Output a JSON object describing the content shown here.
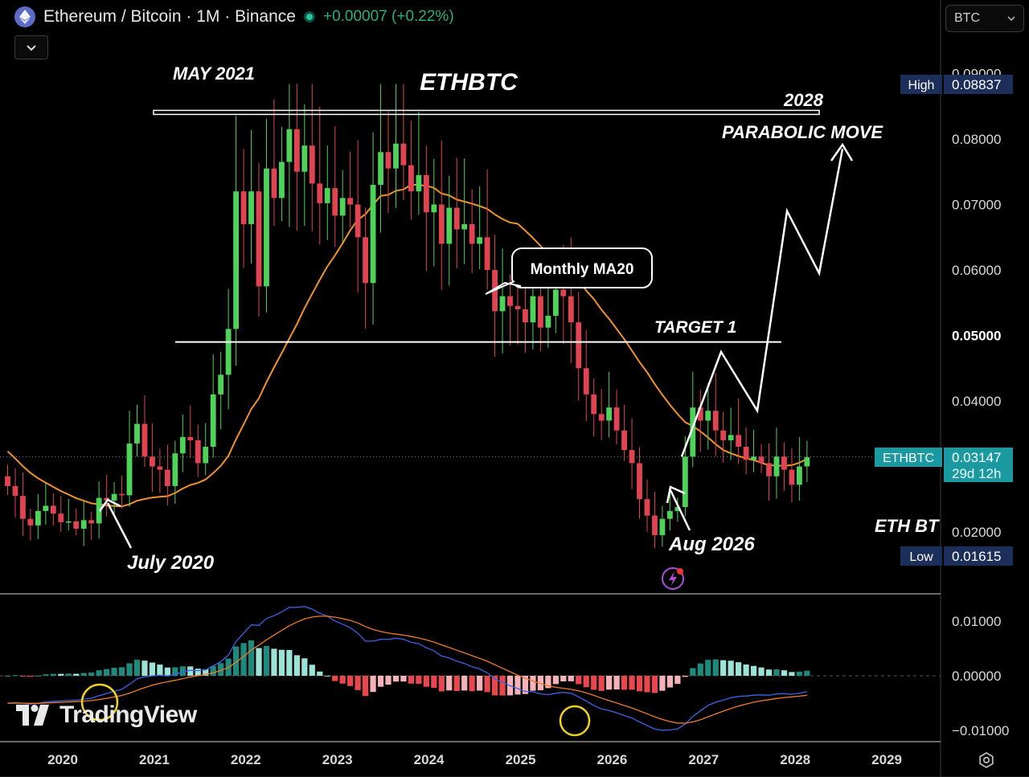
{
  "header": {
    "title": "Ethereum / Bitcoin · 1M · Binance",
    "change": "+0.00007 (+0.22%)"
  },
  "currency_selector": {
    "value": "BTC"
  },
  "watermark": "TradingView",
  "colors": {
    "up": "#4fd25a",
    "down": "#e04452",
    "ma": "#f0922a",
    "macd": "#3d63e6",
    "signal": "#f07a2a",
    "hist_pos_dark": "#1e8a7e",
    "hist_pos_light": "#9be3d6",
    "hist_neg_dark": "#e8474e",
    "hist_neg_light": "#f5b3b8",
    "badge_blue": "#1c2e5a",
    "badge_teal": "#1a9aa0"
  },
  "chart_data": {
    "type": "candlestick",
    "symbol": "ETHBTC",
    "timeframe": "1M",
    "exchange": "Binance",
    "price_axis_ticks": [
      0.09,
      0.08,
      0.07,
      0.06,
      0.05,
      0.04,
      0.02
    ],
    "price_axis_labels": [
      "0.09000",
      "0.08000",
      "0.07000",
      "0.06000",
      "0.05000",
      "0.04000",
      "0.02000"
    ],
    "ylim": [
      0.0135,
      0.0905
    ],
    "x_ticks": [
      "2020",
      "2021",
      "2022",
      "2023",
      "2024",
      "2025",
      "2026",
      "2027",
      "2028",
      "2029"
    ],
    "high": {
      "label": "High",
      "value": "0.08837"
    },
    "low": {
      "label": "Low",
      "value": "0.01615"
    },
    "last": {
      "symbol": "ETHBTC",
      "value": "0.03147",
      "countdown": "29d 12h",
      "price": 0.03147
    },
    "candles_close": [
      0.027,
      0.0255,
      0.022,
      0.021,
      0.0232,
      0.024,
      0.0228,
      0.0215,
      0.0216,
      0.0205,
      0.0218,
      0.0213,
      0.0252,
      0.0248,
      0.0258,
      0.0256,
      0.0335,
      0.0365,
      0.0315,
      0.03,
      0.0295,
      0.027,
      0.032,
      0.0345,
      0.034,
      0.0305,
      0.033,
      0.041,
      0.044,
      0.051,
      0.072,
      0.067,
      0.072,
      0.0575,
      0.0755,
      0.071,
      0.0765,
      0.0815,
      0.075,
      0.079,
      0.0732,
      0.0702,
      0.0725,
      0.0683,
      0.071,
      0.07,
      0.065,
      0.058,
      0.073,
      0.078,
      0.0755,
      0.0793,
      0.076,
      0.072,
      0.0745,
      0.0688,
      0.07,
      0.064,
      0.0695,
      0.0662,
      0.067,
      0.064,
      0.065,
      0.06,
      0.0537,
      0.056,
      0.0545,
      0.054,
      0.052,
      0.056,
      0.0512,
      0.053,
      0.057,
      0.056,
      0.052,
      0.045,
      0.041,
      0.038,
      0.037,
      0.039,
      0.0355,
      0.0325,
      0.0305,
      0.025,
      0.0225,
      0.0195,
      0.022,
      0.0232,
      0.0238,
      0.0315,
      0.039,
      0.037,
      0.0385,
      0.0355,
      0.034,
      0.0348,
      0.033,
      0.031,
      0.0315,
      0.0305,
      0.0285,
      0.0315,
      0.0295,
      0.0272,
      0.03,
      0.0314
    ],
    "ma20_label": "Monthly MA20",
    "macd": {
      "axis_labels": [
        "0.01000",
        "0.00000",
        "−0.01000"
      ],
      "axis_ticks": [
        0.01,
        0.0,
        -0.01
      ],
      "ylim": [
        -0.0122,
        0.0145
      ]
    },
    "annotations": {
      "title": "ETHBTC",
      "may_2021": "MAY 2021",
      "year_2028": "2028",
      "parabolic": "PARABOLIC MOVE",
      "ma_callout": "Monthly MA20",
      "target": "TARGET 1",
      "july_2020": "July 2020",
      "aug_2026": "Aug 2026",
      "eth_bt": "ETH BT"
    },
    "levels": {
      "resistance": 0.084,
      "target": 0.049
    },
    "projection": [
      0.0315,
      0.0475,
      0.0385,
      0.069,
      0.0595,
      0.0785
    ]
  }
}
